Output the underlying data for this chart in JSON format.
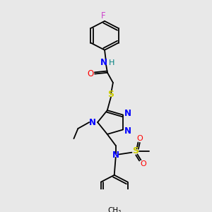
{
  "background_color": "#e8e8e8",
  "fig_width": 3.0,
  "fig_height": 3.0,
  "dpi": 100,
  "colors": {
    "N": "#0000ff",
    "H": "#008080",
    "O": "#ff0000",
    "S": "#cccc00",
    "F": "#cc44cc",
    "C": "#000000",
    "bond": "#000000"
  }
}
